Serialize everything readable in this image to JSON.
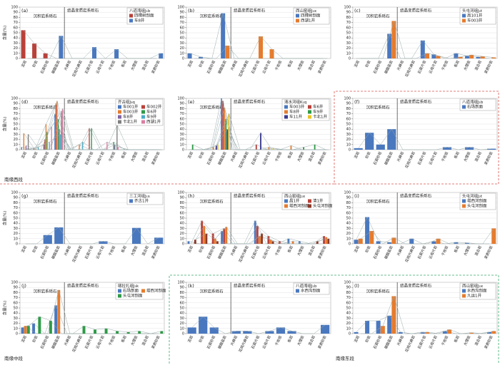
{
  "regions": [
    "南缘西段",
    "南缘中段",
    "南缘东段"
  ],
  "chart_data": [
    {
      "type": "bar",
      "label": "(a)",
      "ylabel": "含量(%)",
      "groups": [
        "沉积岩系砾石",
        "结晶变质岩系砾石"
      ],
      "legend_title": "八道湾组J₁b",
      "categories": [
        "泥岩",
        "砂岩",
        "石英砂岩",
        "碳酸盐岩",
        "片麻岩",
        "花岗片麻岩",
        "石英片岩",
        "云母片岩",
        "千枚岩",
        "板岩",
        "大理岩",
        "混合岩",
        "变质砂岩"
      ],
      "ylim": [
        0,
        100
      ],
      "yticks": [
        0,
        10,
        20,
        30,
        40,
        50,
        60,
        70,
        80,
        90,
        100
      ],
      "series": [
        {
          "name": "四棵树剖面",
          "color": "#b8413a",
          "values": [
            55,
            29,
            10,
            0,
            0,
            0,
            0,
            0,
            0,
            0,
            0,
            0,
            0
          ]
        },
        {
          "name": "车8井",
          "color": "#4a78bf",
          "values": [
            0,
            0,
            0,
            44,
            0,
            0,
            22,
            0,
            18,
            0,
            0,
            0,
            10
          ]
        }
      ]
    },
    {
      "type": "bar",
      "label": "(b)",
      "groups": [
        "沉积岩系砾石",
        "结晶变质岩系砾石"
      ],
      "legend_title": "西山窑组J₂x",
      "categories": [
        "泥岩",
        "砂岩",
        "石英砂岩",
        "碳酸盐岩",
        "片麻岩",
        "花岗片麻岩",
        "石英片岩",
        "云母片岩",
        "千枚岩",
        "板岩",
        "大理岩",
        "混合岩",
        "变质砂岩"
      ],
      "ylim": [
        0,
        100
      ],
      "yticks": [
        0,
        10,
        20,
        30,
        40,
        50,
        60,
        70,
        80,
        90,
        100
      ],
      "series": [
        {
          "name": "四棵树剖面",
          "color": "#4a78bf",
          "values": [
            10,
            3,
            0,
            88,
            0,
            0,
            0,
            0,
            0,
            0,
            0,
            0,
            0
          ]
        },
        {
          "name": "西湖1井",
          "color": "#e57c2f",
          "values": [
            0,
            0,
            0,
            25,
            0,
            0,
            43,
            18,
            0,
            0,
            0,
            0,
            0
          ]
        }
      ]
    },
    {
      "type": "bar",
      "label": "(c)",
      "groups": [
        "沉积岩系砾石",
        "结晶变质岩系砾石"
      ],
      "legend_title": "头屯河组J₂t",
      "categories": [
        "泥岩",
        "砂岩",
        "石英砂岩",
        "碳酸盐岩",
        "片麻岩",
        "花岗片麻岩",
        "石英片岩",
        "云母片岩",
        "千枚岩",
        "板岩",
        "大理岩",
        "混合岩",
        "变质砂岩"
      ],
      "ylim": [
        0,
        100
      ],
      "yticks": [
        0,
        10,
        20,
        30,
        40,
        50,
        60,
        70,
        80,
        90,
        100
      ],
      "series": [
        {
          "name": "高101井",
          "color": "#4a78bf",
          "values": [
            0,
            0,
            0,
            48,
            0,
            0,
            35,
            8,
            0,
            10,
            5,
            3,
            0
          ]
        },
        {
          "name": "车003井",
          "color": "#e57c2f",
          "values": [
            0,
            0,
            0,
            73,
            0,
            0,
            10,
            5,
            0,
            3,
            7,
            4,
            2
          ]
        }
      ]
    },
    {
      "type": "bar",
      "label": "(d)",
      "ylabel": "含量(%)",
      "groups": [
        "沉积岩系砾石",
        "结晶变质岩系砾石"
      ],
      "legend_title": "齐古组J₃q",
      "categories": [
        "泥岩",
        "砂岩",
        "石英砂岩",
        "碳酸盐岩",
        "片麻岩",
        "花岗片麻岩",
        "石英片岩",
        "云母片岩",
        "千枚岩",
        "板岩",
        "大理岩",
        "混合岩",
        "变质砂岩"
      ],
      "ylim": [
        0,
        100
      ],
      "yticks": [
        0,
        10,
        20,
        30,
        40,
        50,
        60,
        70,
        80,
        90,
        100
      ],
      "series": [
        {
          "name": "车001井",
          "color": "#4a78bf",
          "values": [
            5,
            0,
            10,
            70,
            0,
            0,
            0,
            0,
            0,
            0,
            0,
            0,
            0
          ]
        },
        {
          "name": "车002井",
          "color": "#b8413a",
          "values": [
            0,
            3,
            20,
            90,
            0,
            0,
            42,
            0,
            0,
            0,
            0,
            0,
            0
          ]
        },
        {
          "name": "车003井",
          "color": "#e57c2f",
          "values": [
            32,
            0,
            50,
            95,
            0,
            10,
            0,
            0,
            0,
            0,
            0,
            0,
            0
          ]
        },
        {
          "name": "车6井",
          "color": "#2e9a48",
          "values": [
            0,
            0,
            35,
            60,
            0,
            0,
            42,
            0,
            15,
            0,
            0,
            0,
            0
          ]
        },
        {
          "name": "车8井",
          "color": "#8064a2",
          "values": [
            8,
            0,
            0,
            40,
            0,
            0,
            0,
            0,
            10,
            0,
            0,
            0,
            0
          ]
        },
        {
          "name": "车9井",
          "color": "#4bacc6",
          "values": [
            0,
            5,
            15,
            30,
            0,
            15,
            0,
            0,
            0,
            0,
            0,
            0,
            0
          ]
        },
        {
          "name": "卡北1井",
          "color": "#7f7f7f",
          "values": [
            30,
            0,
            0,
            75,
            0,
            0,
            0,
            0,
            48,
            0,
            0,
            0,
            0
          ]
        },
        {
          "name": "西湖1井",
          "color": "#d97fa3",
          "values": [
            0,
            0,
            45,
            80,
            0,
            0,
            0,
            15,
            5,
            0,
            0,
            0,
            0
          ]
        }
      ]
    },
    {
      "type": "bar",
      "label": "(e)",
      "groups": [
        "沉积岩系砾石",
        "结晶变质岩系砾石"
      ],
      "legend_title": "清水河组K₁q",
      "categories": [
        "泥岩",
        "砂岩",
        "石英砂岩",
        "碳酸盐岩",
        "片麻岩",
        "花岗片麻岩",
        "石英片岩",
        "云母片岩",
        "千枚岩",
        "板岩",
        "大理岩",
        "混合岩",
        "变质砂岩"
      ],
      "ylim": [
        0,
        100
      ],
      "yticks": [
        0,
        10,
        20,
        30,
        40,
        50,
        60,
        70,
        80,
        90,
        100
      ],
      "series": [
        {
          "name": "车003井",
          "color": "#4a78bf",
          "values": [
            0,
            0,
            0,
            100,
            0,
            0,
            0,
            0,
            0,
            0,
            0,
            0,
            0
          ]
        },
        {
          "name": "车6井",
          "color": "#b8413a",
          "values": [
            0,
            0,
            0,
            95,
            0,
            0,
            10,
            0,
            0,
            0,
            0,
            0,
            0
          ]
        },
        {
          "name": "车8井",
          "color": "#e57c2f",
          "values": [
            0,
            0,
            5,
            82,
            0,
            0,
            0,
            5,
            0,
            8,
            0,
            0,
            0
          ]
        },
        {
          "name": "车9井",
          "color": "#2e9a48",
          "values": [
            10,
            0,
            0,
            60,
            0,
            0,
            0,
            0,
            0,
            0,
            5,
            10,
            0
          ]
        },
        {
          "name": "车11井",
          "color": "#3b3b8f",
          "values": [
            0,
            0,
            8,
            40,
            0,
            0,
            33,
            0,
            0,
            0,
            0,
            0,
            0
          ]
        },
        {
          "name": "卡北1井",
          "color": "#e8c42a",
          "values": [
            0,
            0,
            10,
            70,
            0,
            0,
            0,
            3,
            0,
            0,
            0,
            0,
            0
          ]
        }
      ]
    },
    {
      "type": "bar",
      "label": "(f)",
      "groups": [
        "沉积岩系砾石",
        "结晶变质岩系砾石"
      ],
      "legend_title": "八道湾组J₁b",
      "categories": [
        "泥岩",
        "砂岩",
        "石英砂岩",
        "碳酸盐岩",
        "片麻岩",
        "花岗片麻岩",
        "石英片岩",
        "云母片岩",
        "千枚岩",
        "板岩",
        "大理岩",
        "混合岩",
        "变质砂岩"
      ],
      "ylim": [
        0,
        100
      ],
      "yticks": [
        0,
        10,
        20,
        30,
        40,
        50,
        60,
        70,
        80,
        90,
        100
      ],
      "series": [
        {
          "name": "石场剖面",
          "color": "#4a78bf",
          "values": [
            3,
            33,
            10,
            40,
            0,
            0,
            0,
            0,
            5,
            0,
            5,
            0,
            2
          ]
        }
      ]
    },
    {
      "type": "bar",
      "label": "(g)",
      "ylabel": "含量(%)",
      "groups": [
        "沉积岩系砾石",
        "结晶变质岩系砾石"
      ],
      "legend_title": "三工河组J₁s",
      "categories": [
        "泥岩",
        "砂岩",
        "石英砂岩",
        "碳酸盐岩",
        "片麻岩",
        "花岗片麻岩",
        "石英片岩",
        "云母片岩",
        "千枚岩",
        "板岩",
        "大理岩",
        "混合岩",
        "变质砂岩"
      ],
      "ylim": [
        0,
        100
      ],
      "yticks": [
        0,
        10,
        20,
        30,
        40,
        50,
        60,
        70,
        80,
        90,
        100
      ],
      "series": [
        {
          "name": "齐古1井",
          "color": "#4a78bf",
          "values": [
            0,
            0,
            17,
            32,
            0,
            0,
            0,
            5,
            0,
            0,
            31,
            0,
            12
          ]
        }
      ]
    },
    {
      "type": "bar",
      "label": "(h)",
      "groups": [
        "沉积岩系砾石",
        "结晶变质岩系砾石"
      ],
      "legend_title": "西山窑组J₂x",
      "categories": [
        "泥岩",
        "砂岩",
        "石英砂岩",
        "碳酸盐岩",
        "片麻岩",
        "花岗片麻岩",
        "石英片岩",
        "云母片岩",
        "千枚岩",
        "板岩",
        "大理岩",
        "混合岩",
        "变质砂岩"
      ],
      "ylim": [
        0,
        100
      ],
      "yticks": [
        0,
        10,
        20,
        30,
        40,
        50,
        60,
        70,
        80,
        90,
        100
      ],
      "series": [
        {
          "name": "昌1井",
          "color": "#4a78bf",
          "values": [
            5,
            0,
            0,
            25,
            0,
            0,
            45,
            0,
            0,
            10,
            5,
            0,
            0
          ]
        },
        {
          "name": "清1井",
          "color": "#b8413a",
          "values": [
            0,
            45,
            20,
            30,
            0,
            0,
            35,
            15,
            5,
            0,
            0,
            0,
            15
          ]
        },
        {
          "name": "塔西河剖面",
          "color": "#e57c2f",
          "values": [
            0,
            35,
            10,
            33,
            0,
            0,
            15,
            8,
            0,
            5,
            0,
            0,
            13
          ]
        },
        {
          "name": "头屯河剖面",
          "color": "#8b3a2a",
          "values": [
            8,
            20,
            5,
            0,
            0,
            0,
            20,
            5,
            0,
            0,
            0,
            5,
            10
          ]
        }
      ]
    },
    {
      "type": "bar",
      "label": "(i)",
      "groups": [
        "沉积岩系砾石",
        "结晶变质岩系砾石"
      ],
      "legend_title": "头屯河组J₂t",
      "categories": [
        "泥岩",
        "砂岩",
        "石英砂岩",
        "碳酸盐岩",
        "片麻岩",
        "花岗片麻岩",
        "石英片岩",
        "云母片岩",
        "千枚岩",
        "板岩",
        "大理岩",
        "混合岩",
        "变质砂岩"
      ],
      "ylim": [
        0,
        100
      ],
      "yticks": [
        0,
        10,
        20,
        30,
        40,
        50,
        60,
        70,
        80,
        90,
        100
      ],
      "series": [
        {
          "name": "塔西河剖面",
          "color": "#4a78bf",
          "values": [
            8,
            52,
            5,
            3,
            0,
            10,
            0,
            5,
            0,
            3,
            2,
            0,
            0
          ]
        },
        {
          "name": "头屯河剖面",
          "color": "#e57c2f",
          "values": [
            10,
            25,
            0,
            12,
            0,
            0,
            0,
            10,
            0,
            0,
            0,
            0,
            30
          ]
        }
      ]
    },
    {
      "type": "bar",
      "label": "(j)",
      "ylabel": "含量(%)",
      "groups": [
        "沉积岩系砾石",
        "结晶变质岩系砾石"
      ],
      "legend_title": "喀拉扎组J₃k",
      "categories": [
        "泥岩",
        "砂岩",
        "石英砂岩",
        "碳酸盐岩",
        "片麻岩",
        "花岗片麻岩",
        "石英片岩",
        "云母片岩",
        "千枚岩",
        "板岩",
        "大理岩",
        "混合岩",
        "变质砂岩"
      ],
      "ylim": [
        0,
        100
      ],
      "yticks": [
        0,
        10,
        20,
        30,
        40,
        50,
        60,
        70,
        80,
        90,
        100
      ],
      "series": [
        {
          "name": "石场剖面",
          "color": "#4a78bf",
          "values": [
            12,
            20,
            0,
            55,
            0,
            0,
            0,
            0,
            0,
            0,
            0,
            0,
            0
          ]
        },
        {
          "name": "塔西河剖面",
          "color": "#e57c2f",
          "values": [
            15,
            0,
            0,
            85,
            0,
            0,
            0,
            0,
            0,
            0,
            0,
            0,
            0
          ]
        },
        {
          "name": "头屯河剖面",
          "color": "#2e9a48",
          "values": [
            15,
            33,
            25,
            0,
            0,
            15,
            8,
            10,
            5,
            3,
            5,
            0,
            5
          ]
        }
      ]
    },
    {
      "type": "bar",
      "label": "(k)",
      "groups": [
        "沉积岩系砾石",
        "结晶变质岩系砾石"
      ],
      "legend_title": "八道湾组J₁b",
      "categories": [
        "泥岩",
        "砂岩",
        "石英砂岩",
        "碳酸盐岩",
        "片麻岩",
        "花岗片麻岩",
        "石英片岩",
        "云母片岩",
        "千枚岩",
        "板岩",
        "大理岩",
        "混合岩",
        "变质砂岩"
      ],
      "ylim": [
        0,
        100
      ],
      "yticks": [
        0,
        10,
        20,
        30,
        40,
        50,
        60,
        70,
        80,
        90,
        100
      ],
      "series": [
        {
          "name": "水西沟剖面",
          "color": "#4a78bf",
          "values": [
            12,
            33,
            12,
            0,
            5,
            5,
            0,
            5,
            12,
            5,
            0,
            0,
            17
          ]
        }
      ]
    },
    {
      "type": "bar",
      "label": "(l)",
      "groups": [
        "沉积岩系砾石",
        "结晶变质岩系砾石"
      ],
      "legend_title": "西山窑组J₂x",
      "categories": [
        "泥岩",
        "砂岩",
        "石英砂岩",
        "碳酸盐岩",
        "片麻岩",
        "花岗片麻岩",
        "石英片岩",
        "云母片岩",
        "千枚岩",
        "板岩",
        "大理岩",
        "混合岩",
        "变质砂岩"
      ],
      "ylim": [
        0,
        100
      ],
      "yticks": [
        0,
        10,
        20,
        30,
        40,
        50,
        60,
        70,
        80,
        90,
        100
      ],
      "series": [
        {
          "name": "水西沟剖面",
          "color": "#4a78bf",
          "values": [
            3,
            25,
            25,
            35,
            3,
            0,
            3,
            0,
            5,
            0,
            0,
            0,
            3
          ]
        },
        {
          "name": "九运1井",
          "color": "#e57c2f",
          "values": [
            0,
            0,
            15,
            73,
            0,
            0,
            3,
            0,
            8,
            0,
            2,
            0,
            5
          ]
        }
      ]
    }
  ]
}
